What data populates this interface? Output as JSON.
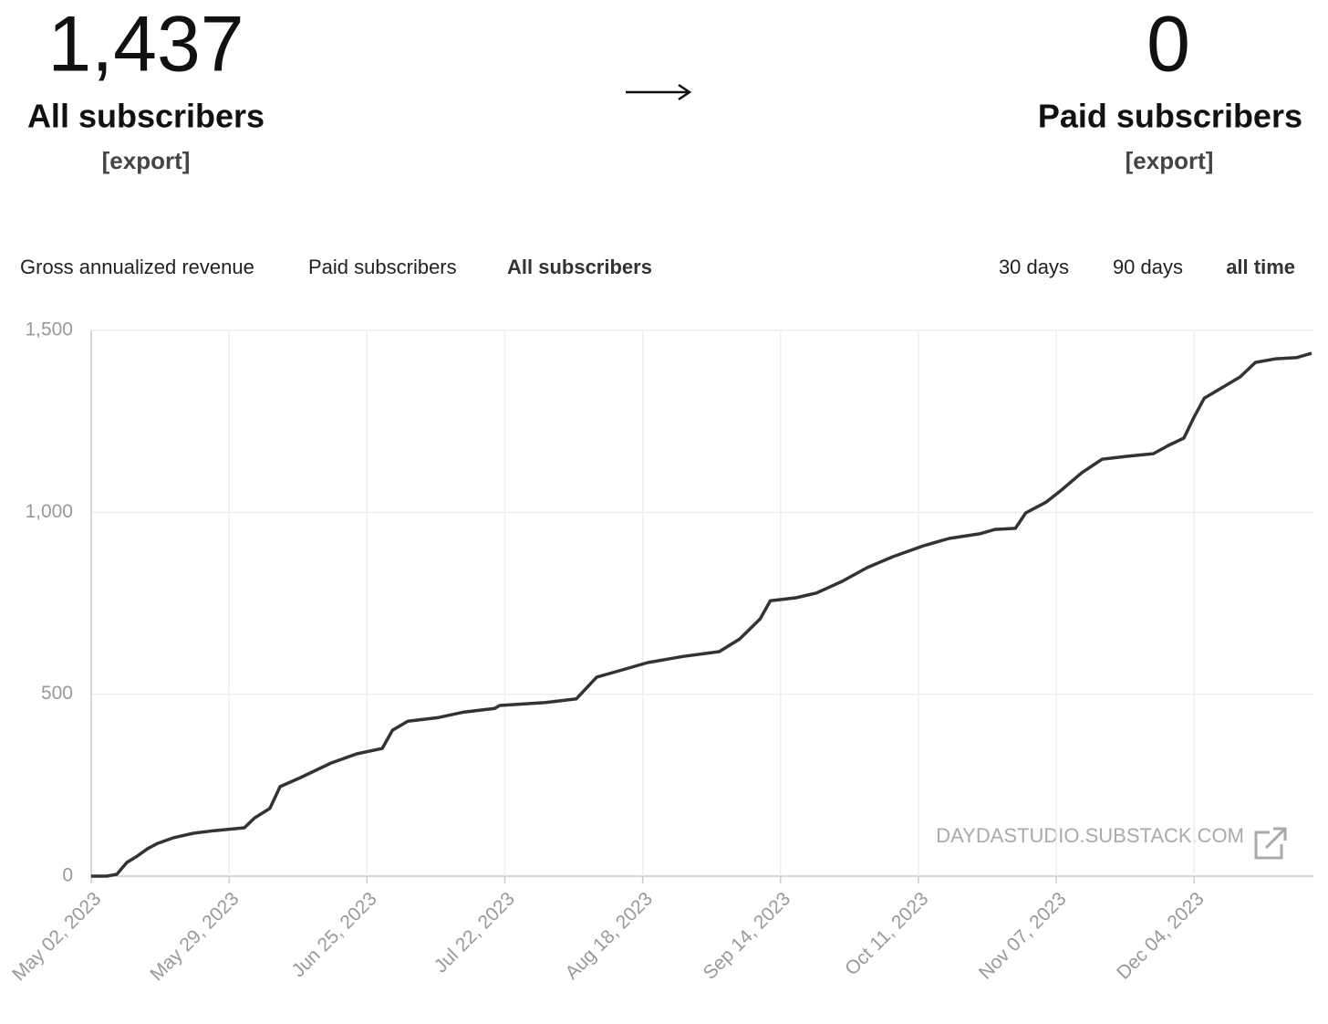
{
  "header": {
    "all_count": "1,437",
    "all_label": "All subscribers",
    "all_export": "[export]",
    "paid_count": "0",
    "paid_label": "Paid subscribers",
    "paid_export": "[export]"
  },
  "tabs": {
    "metrics": [
      "Gross annualized revenue",
      "Paid subscribers",
      "All subscribers"
    ],
    "active_metric": 2,
    "ranges": [
      "30 days",
      "90 days",
      "all time"
    ],
    "active_range": 2
  },
  "watermark": "DAYDASTUDIO.SUBSTACK.COM",
  "chart_data": {
    "type": "line",
    "color": "#333333",
    "grid": true,
    "x": [
      "2023-05-02",
      "2023-05-05",
      "2023-05-07",
      "2023-05-09",
      "2023-05-11",
      "2023-05-13",
      "2023-05-15",
      "2023-05-18",
      "2023-05-22",
      "2023-05-26",
      "2023-06-01",
      "2023-06-03",
      "2023-06-06",
      "2023-06-08",
      "2023-06-12",
      "2023-06-18",
      "2023-06-23",
      "2023-06-28",
      "2023-06-30",
      "2023-07-03",
      "2023-07-09",
      "2023-07-14",
      "2023-07-20",
      "2023-07-21",
      "2023-07-30",
      "2023-08-05",
      "2023-08-09",
      "2023-08-14",
      "2023-08-19",
      "2023-08-26",
      "2023-09-02",
      "2023-09-06",
      "2023-09-10",
      "2023-09-12",
      "2023-09-17",
      "2023-09-21",
      "2023-09-26",
      "2023-10-01",
      "2023-10-06",
      "2023-10-12",
      "2023-10-17",
      "2023-10-23",
      "2023-10-26",
      "2023-10-30",
      "2023-11-01",
      "2023-11-05",
      "2023-11-08",
      "2023-11-12",
      "2023-11-16",
      "2023-11-21",
      "2023-11-26",
      "2023-11-29",
      "2023-12-02",
      "2023-12-04",
      "2023-12-06",
      "2023-12-10",
      "2023-12-13",
      "2023-12-16",
      "2023-12-20",
      "2023-12-24",
      "2023-12-27"
    ],
    "values": [
      0,
      0,
      5,
      38,
      55,
      75,
      90,
      105,
      118,
      125,
      133,
      160,
      186,
      246,
      271,
      311,
      336,
      351,
      401,
      426,
      436,
      451,
      461,
      469,
      477,
      487,
      547,
      567,
      587,
      604,
      617,
      652,
      707,
      757,
      765,
      778,
      810,
      848,
      878,
      908,
      928,
      941,
      953,
      956,
      998,
      1028,
      1061,
      1109,
      1146,
      1154,
      1161,
      1184,
      1204,
      1262,
      1314,
      1347,
      1372,
      1412,
      1422,
      1425,
      1437
    ],
    "xlim": [
      "2023-05-02",
      "2023-12-27"
    ],
    "xticks": [
      {
        "value": "2023-05-02",
        "label": "May 02, 2023"
      },
      {
        "value": "2023-05-29",
        "label": "May 29, 2023"
      },
      {
        "value": "2023-06-25",
        "label": "Jun 25, 2023"
      },
      {
        "value": "2023-07-22",
        "label": "Jul 22, 2023"
      },
      {
        "value": "2023-08-18",
        "label": "Aug 18, 2023"
      },
      {
        "value": "2023-09-14",
        "label": "Sep 14, 2023"
      },
      {
        "value": "2023-10-11",
        "label": "Oct 11, 2023"
      },
      {
        "value": "2023-11-07",
        "label": "Nov 07, 2023"
      },
      {
        "value": "2023-12-04",
        "label": "Dec 04, 2023"
      }
    ],
    "ylim": [
      0,
      1500
    ],
    "yticks": [
      0,
      500,
      {
        "value": 1000,
        "label": "1,000"
      },
      {
        "value": 1500,
        "label": "1,500"
      }
    ]
  }
}
